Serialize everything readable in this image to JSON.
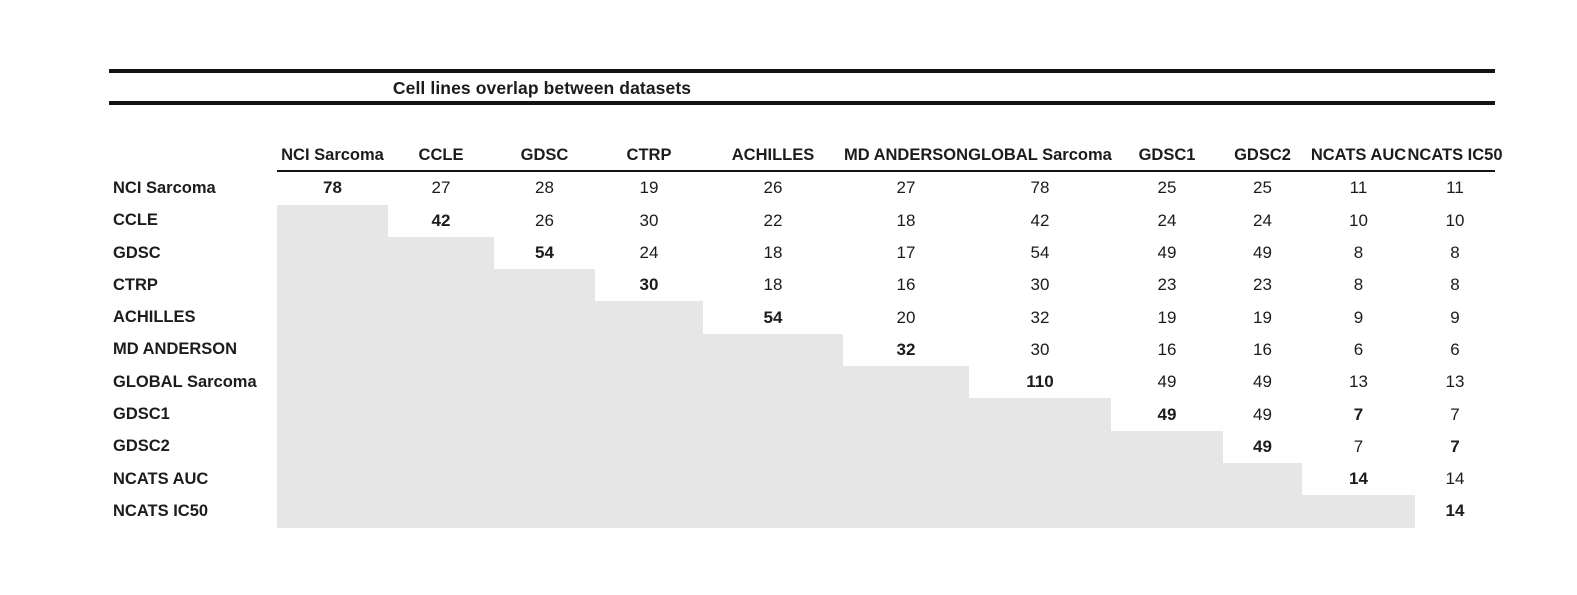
{
  "title": "Cell lines overlap between datasets",
  "colors": {
    "shade": "#e7e6e6",
    "rule": "#141414",
    "text": "#1c1c1c"
  },
  "chart_data": {
    "type": "table",
    "title": "Cell lines overlap between datasets",
    "description": "Upper-triangular overlap matrix; diagonal holds each dataset's own cell line count (bold); lower triangle is shaded gray with no values.",
    "columns": [
      "NCI Sarcoma",
      "CCLE",
      "GDSC",
      "CTRP",
      "ACHILLES",
      "MD ANDERSON",
      "GLOBAL Sarcoma",
      "GDSC1",
      "GDSC2",
      "NCATS AUC",
      "NCATS IC50"
    ],
    "rows": [
      {
        "label": "NCI Sarcoma",
        "cells": [
          {
            "v": "78",
            "bold": true
          },
          {
            "v": "27"
          },
          {
            "v": "28"
          },
          {
            "v": "19"
          },
          {
            "v": "26"
          },
          {
            "v": "27"
          },
          {
            "v": "78"
          },
          {
            "v": "25"
          },
          {
            "v": "25"
          },
          {
            "v": "11"
          },
          {
            "v": "11"
          }
        ]
      },
      {
        "label": "CCLE",
        "cells": [
          null,
          {
            "v": "42",
            "bold": true
          },
          {
            "v": "26"
          },
          {
            "v": "30"
          },
          {
            "v": "22"
          },
          {
            "v": "18"
          },
          {
            "v": "42"
          },
          {
            "v": "24"
          },
          {
            "v": "24"
          },
          {
            "v": "10"
          },
          {
            "v": "10"
          }
        ]
      },
      {
        "label": "GDSC",
        "cells": [
          null,
          null,
          {
            "v": "54",
            "bold": true
          },
          {
            "v": "24"
          },
          {
            "v": "18"
          },
          {
            "v": "17"
          },
          {
            "v": "54"
          },
          {
            "v": "49"
          },
          {
            "v": "49"
          },
          {
            "v": "8"
          },
          {
            "v": "8"
          }
        ]
      },
      {
        "label": "CTRP",
        "cells": [
          null,
          null,
          null,
          {
            "v": "30",
            "bold": true
          },
          {
            "v": "18"
          },
          {
            "v": "16"
          },
          {
            "v": "30"
          },
          {
            "v": "23"
          },
          {
            "v": "23"
          },
          {
            "v": "8"
          },
          {
            "v": "8"
          }
        ]
      },
      {
        "label": "ACHILLES",
        "cells": [
          null,
          null,
          null,
          null,
          {
            "v": "54",
            "bold": true
          },
          {
            "v": "20"
          },
          {
            "v": "32"
          },
          {
            "v": "19"
          },
          {
            "v": "19"
          },
          {
            "v": "9"
          },
          {
            "v": "9"
          }
        ]
      },
      {
        "label": "MD ANDERSON",
        "cells": [
          null,
          null,
          null,
          null,
          null,
          {
            "v": "32",
            "bold": true
          },
          {
            "v": "30"
          },
          {
            "v": "16"
          },
          {
            "v": "16"
          },
          {
            "v": "6"
          },
          {
            "v": "6"
          }
        ]
      },
      {
        "label": "GLOBAL Sarcoma",
        "cells": [
          null,
          null,
          null,
          null,
          null,
          null,
          {
            "v": "110",
            "bold": true
          },
          {
            "v": "49"
          },
          {
            "v": "49"
          },
          {
            "v": "13"
          },
          {
            "v": "13"
          }
        ]
      },
      {
        "label": "GDSC1",
        "cells": [
          null,
          null,
          null,
          null,
          null,
          null,
          null,
          {
            "v": "49",
            "bold": true
          },
          {
            "v": "49"
          },
          {
            "v": "7",
            "bold": true
          },
          {
            "v": "7"
          }
        ]
      },
      {
        "label": "GDSC2",
        "cells": [
          null,
          null,
          null,
          null,
          null,
          null,
          null,
          null,
          {
            "v": "49",
            "bold": true
          },
          {
            "v": "7"
          },
          {
            "v": "7",
            "bold": true
          }
        ]
      },
      {
        "label": "NCATS AUC",
        "cells": [
          null,
          null,
          null,
          null,
          null,
          null,
          null,
          null,
          null,
          {
            "v": "14",
            "bold": true
          },
          {
            "v": "14"
          }
        ]
      },
      {
        "label": "NCATS IC50",
        "cells": [
          null,
          null,
          null,
          null,
          null,
          null,
          null,
          null,
          null,
          null,
          {
            "v": "14",
            "bold": true
          }
        ]
      }
    ],
    "layout_hints": {
      "shaded_region": "lower-triangle",
      "title_rules": "thick horizontal rules above and below title",
      "header_underline": true
    }
  }
}
